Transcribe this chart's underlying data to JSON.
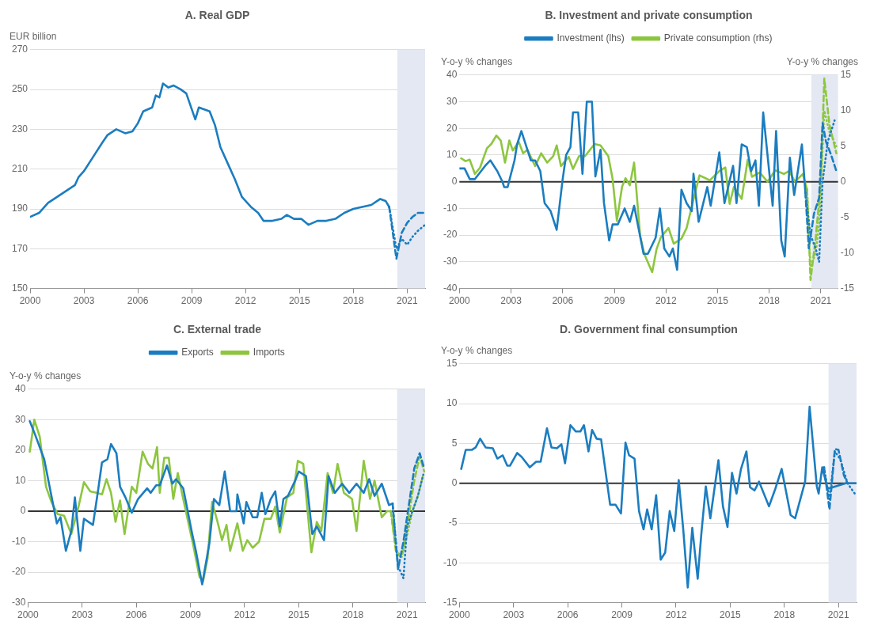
{
  "chart_data": [
    {
      "type": "line",
      "title": "A. Real GDP",
      "ylabel": "EUR billion",
      "marker": "none",
      "grid": "y",
      "xlim": [
        2000,
        2022
      ],
      "xticks": [
        2000,
        2003,
        2006,
        2009,
        2012,
        2015,
        2018,
        2021
      ],
      "ylim": [
        150,
        270
      ],
      "yticks": [
        150,
        170,
        190,
        210,
        230,
        250,
        270
      ],
      "bands": [
        {
          "axis": "x",
          "from": 2020.45,
          "to": 2022,
          "color": "#e4e8f2"
        }
      ],
      "series": [
        {
          "color": "#1b7dc0",
          "line_style": "solid",
          "x": [
            2000,
            2000.5,
            2001,
            2001.5,
            2002,
            2002.5,
            2002.7,
            2003,
            2003.5,
            2004,
            2004.3,
            2004.8,
            2005.3,
            2005.7,
            2006,
            2006.3,
            2006.8,
            2007,
            2007.2,
            2007.4,
            2007.7,
            2008,
            2008.4,
            2008.7,
            2009.2,
            2009.4,
            2009.7,
            2010,
            2010.3,
            2010.6,
            2011,
            2011.4,
            2011.8,
            2012.3,
            2012.7,
            2013,
            2013.5,
            2014,
            2014.3,
            2014.7,
            2015.1,
            2015.5,
            2016,
            2016.5,
            2017,
            2017.5,
            2018,
            2018.5,
            2019,
            2019.5,
            2019.8,
            2020
          ],
          "values": [
            186,
            188,
            193,
            196,
            199,
            202,
            206,
            209,
            216,
            223,
            227,
            230,
            228,
            229,
            233,
            239,
            241,
            247,
            246,
            253,
            251,
            252,
            250,
            248,
            235,
            241,
            240,
            239,
            232,
            221,
            213,
            205,
            196,
            191,
            188,
            184,
            184,
            185,
            187,
            185,
            185,
            182,
            184,
            184,
            185,
            188,
            190,
            191,
            192,
            195,
            194,
            191
          ]
        },
        {
          "color": "#1b7dc0",
          "line_style": "dashed",
          "x": [
            2020,
            2020.4,
            2020.7,
            2021,
            2021.3,
            2021.6,
            2022
          ],
          "values": [
            191,
            165,
            178,
            183,
            186,
            188,
            188
          ]
        },
        {
          "color": "#1b7dc0",
          "line_style": "dotted",
          "x": [
            2020,
            2020.4,
            2020.7,
            2021,
            2021.3,
            2021.6,
            2022
          ],
          "values": [
            191,
            170,
            175,
            172,
            176,
            179,
            182
          ]
        }
      ]
    },
    {
      "type": "line",
      "title": "B. Investment and private consumption",
      "ylabel": "Y-o-y % changes",
      "y2label": "Y-o-y % changes",
      "marker": "none",
      "grid": "y",
      "legend": "top",
      "xlim": [
        2000,
        2022
      ],
      "xticks": [
        2000,
        2003,
        2006,
        2009,
        2012,
        2015,
        2018,
        2021
      ],
      "ylim": [
        -40,
        40
      ],
      "yticks": [
        -40,
        -30,
        -20,
        -10,
        0,
        10,
        20,
        30,
        40
      ],
      "y2lim": [
        -15,
        15
      ],
      "y2ticks": [
        -15,
        -10,
        -5,
        0,
        5,
        10,
        15
      ],
      "bands": [
        {
          "axis": "x",
          "from": 2020.45,
          "to": 2022,
          "color": "#e4e8f2"
        }
      ],
      "ref_lines": [
        {
          "axis": "y",
          "value": 0,
          "color": "#333333"
        }
      ],
      "series": [
        {
          "name": "Investment (lhs)",
          "color": "#1b7dc0",
          "line_style": "solid",
          "x": [
            2000,
            2000.3,
            2000.6,
            2000.9,
            2001.5,
            2001.8,
            2002.2,
            2002.5,
            2002.6,
            2002.8,
            2003.2,
            2003.35,
            2003.6,
            2003.9,
            2004.15,
            2004.4,
            2004.7,
            2004.95,
            2005.3,
            2005.65,
            2006,
            2006.2,
            2006.45,
            2006.6,
            2006.9,
            2007.15,
            2007.4,
            2007.7,
            2007.9,
            2008.2,
            2008.4,
            2008.7,
            2008.9,
            2009.2,
            2009.6,
            2009.9,
            2010.15,
            2010.7,
            2010.95,
            2011.4,
            2011.65,
            2011.9,
            2012.2,
            2012.4,
            2012.65,
            2012.9,
            2013.2,
            2013.5,
            2013.6,
            2013.9,
            2014.4,
            2014.6,
            2015.1,
            2015.4,
            2015.9,
            2016.1,
            2016.4,
            2016.7,
            2016.95,
            2017.2,
            2017.4,
            2017.65,
            2018.2,
            2018.4,
            2018.7,
            2018.9,
            2019.2,
            2019.45,
            2019.9,
            2020.1
          ],
          "values": [
            5,
            5,
            1,
            1,
            6,
            8,
            4,
            0,
            -2,
            -2,
            8,
            14,
            19,
            13,
            8,
            8,
            4,
            -8,
            -11,
            -18,
            1,
            10,
            13,
            26,
            26,
            3,
            30,
            30,
            2,
            12,
            -8,
            -22,
            -16,
            -16,
            -10,
            -15,
            -9,
            -27,
            -27,
            -21,
            -10,
            -25,
            -28,
            -25,
            -33,
            -3,
            -8,
            -11,
            3,
            -15,
            -2,
            -9,
            11,
            -8,
            6,
            -8,
            14,
            13,
            4,
            8,
            -9,
            26,
            -9,
            19,
            -22,
            -28,
            9,
            -5,
            14,
            -4
          ]
        },
        {
          "name": "Private consumption (rhs)",
          "axis": "y2",
          "color": "#8dc63f",
          "line_style": "solid",
          "x": [
            2000.1,
            2000.35,
            2000.6,
            2000.9,
            2001.2,
            2001.6,
            2001.85,
            2002.15,
            2002.4,
            2002.65,
            2002.9,
            2003.1,
            2003.45,
            2003.7,
            2003.95,
            2004.4,
            2004.75,
            2005.1,
            2005.45,
            2005.65,
            2005.9,
            2006.35,
            2006.6,
            2006.95,
            2007.3,
            2007.85,
            2008.2,
            2008.65,
            2008.9,
            2009.15,
            2009.45,
            2009.65,
            2009.9,
            2010.15,
            2010.5,
            2010.75,
            2011.2,
            2011.45,
            2011.7,
            2012.15,
            2012.45,
            2012.9,
            2013.2,
            2013.6,
            2013.95,
            2014.3,
            2014.55,
            2015.1,
            2015.45,
            2015.7,
            2015.95,
            2016.4,
            2016.75,
            2017,
            2017.45,
            2017.9,
            2018.35,
            2018.85,
            2019.15,
            2019.5,
            2019.95,
            2020.2
          ],
          "values": [
            3.3,
            2.9,
            3.1,
            1.1,
            2,
            4.7,
            5.3,
            6.5,
            5.8,
            2.7,
            5.8,
            4.4,
            5.6,
            4,
            4.5,
            2.2,
            4,
            2.7,
            3.6,
            5.1,
            2.2,
            3.5,
            1.8,
            3.6,
            3.6,
            5.3,
            5.1,
            3.6,
            0.4,
            -5.5,
            -0.7,
            0.5,
            -0.5,
            2.7,
            -7.6,
            -10.2,
            -12.7,
            -9.5,
            -7.8,
            -6.5,
            -8.7,
            -8,
            -6.5,
            -2.5,
            0.9,
            0.5,
            0.2,
            1.5,
            2,
            -3.1,
            -0.7,
            -2.4,
            3.1,
            0.7,
            1.3,
            0,
            1.6,
            1.1,
            1.5,
            0,
            1.1,
            -1.1
          ]
        },
        {
          "color": "#1b7dc0",
          "line_style": "dashed",
          "x": [
            2020.1,
            2020.3,
            2020.6,
            2020.9,
            2021.1,
            2021.3,
            2021.6,
            2021.9
          ],
          "values": [
            -4,
            -25,
            -12,
            -6,
            22,
            15,
            10,
            4
          ]
        },
        {
          "color": "#1b7dc0",
          "line_style": "dotted",
          "x": [
            2020.1,
            2020.4,
            2020.7,
            2020.9,
            2021.1,
            2021.4,
            2021.8
          ],
          "values": [
            -4,
            -20,
            -25,
            -30,
            0,
            15,
            23
          ]
        },
        {
          "axis": "y2",
          "color": "#8dc63f",
          "line_style": "dashed",
          "x": [
            2020.2,
            2020.4,
            2020.7,
            2021,
            2021.2,
            2021.5,
            2021.9
          ],
          "values": [
            -1.1,
            -13.8,
            -8,
            0,
            14.5,
            8,
            4
          ]
        },
        {
          "axis": "y2",
          "color": "#8dc63f",
          "line_style": "dotted",
          "x": [
            2020.2,
            2020.4,
            2020.7,
            2020.9,
            2021.2,
            2021.5,
            2021.9
          ],
          "values": [
            -1.1,
            -12,
            -10,
            -6,
            10,
            7,
            5
          ]
        }
      ]
    },
    {
      "type": "line",
      "title": "C. External trade",
      "ylabel": "Y-o-y % changes",
      "marker": "none",
      "grid": "y",
      "legend": "top",
      "xlim": [
        2000,
        2022
      ],
      "xticks": [
        2000,
        2003,
        2006,
        2009,
        2012,
        2015,
        2018,
        2021
      ],
      "ylim": [
        -30,
        40
      ],
      "yticks": [
        -30,
        -20,
        -10,
        0,
        10,
        20,
        30,
        40
      ],
      "bands": [
        {
          "axis": "x",
          "from": 2020.45,
          "to": 2022,
          "color": "#e4e8f2"
        }
      ],
      "ref_lines": [
        {
          "axis": "y",
          "value": 0,
          "color": "#333333"
        }
      ],
      "series": [
        {
          "name": "Exports",
          "color": "#1b7dc0",
          "line_style": "solid",
          "x": [
            2000.1,
            2000.4,
            2000.9,
            2001.2,
            2001.6,
            2001.8,
            2002.1,
            2002.4,
            2002.6,
            2002.9,
            2003.1,
            2003.6,
            2003.9,
            2004.1,
            2004.4,
            2004.6,
            2004.9,
            2005.1,
            2005.4,
            2005.75,
            2006.1,
            2006.6,
            2006.8,
            2007.1,
            2007.3,
            2007.7,
            2008,
            2008.2,
            2008.6,
            2009.1,
            2009.3,
            2009.65,
            2010.05,
            2010.3,
            2010.6,
            2010.9,
            2011.2,
            2011.55,
            2011.6,
            2011.95,
            2012.1,
            2012.45,
            2012.7,
            2012.95,
            2013.15,
            2013.45,
            2013.7,
            2013.95,
            2014.15,
            2014.4,
            2014.8,
            2015,
            2015.4,
            2015.75,
            2016,
            2016.4,
            2016.65,
            2017,
            2017.4,
            2017.8,
            2018.2,
            2018.6,
            2018.9,
            2019.2,
            2019.6,
            2020,
            2020.2
          ],
          "values": [
            29.5,
            25,
            17,
            8,
            -4,
            -2,
            -13,
            -6.5,
            4.5,
            -13,
            -2.5,
            -4.5,
            7.5,
            16,
            17,
            22,
            19,
            8,
            4.5,
            -0.5,
            4,
            7.5,
            6,
            8.5,
            8.5,
            15,
            9,
            10.5,
            7.5,
            -7.5,
            -13,
            -24,
            -10.5,
            4,
            2,
            13,
            0,
            0,
            5.5,
            -4,
            3,
            -2,
            -2,
            6,
            -1,
            4,
            6.5,
            -5,
            4,
            5,
            10,
            13,
            11.5,
            -7.5,
            -5,
            -9.5,
            11.5,
            6,
            9,
            6,
            9,
            6,
            10.5,
            5,
            9,
            2,
            2.5
          ]
        },
        {
          "name": "Imports",
          "color": "#8dc63f",
          "line_style": "solid",
          "x": [
            2000.1,
            2000.35,
            2000.65,
            2001,
            2001.3,
            2001.65,
            2002,
            2002.4,
            2002.8,
            2003.1,
            2003.45,
            2003.8,
            2004.1,
            2004.35,
            2004.6,
            2004.85,
            2005.1,
            2005.35,
            2005.75,
            2006,
            2006.35,
            2006.65,
            2006.9,
            2007.15,
            2007.3,
            2007.55,
            2007.8,
            2008.05,
            2008.3,
            2008.6,
            2009.15,
            2009.5,
            2009.7,
            2009.95,
            2010.2,
            2010.5,
            2010.75,
            2011,
            2011.2,
            2011.6,
            2011.9,
            2012.15,
            2012.45,
            2012.8,
            2013.1,
            2013.45,
            2013.7,
            2013.95,
            2014.35,
            2014.7,
            2014.95,
            2015.25,
            2015.7,
            2016,
            2016.25,
            2016.6,
            2016.9,
            2017.15,
            2017.5,
            2017.95,
            2018.2,
            2018.6,
            2018.95,
            2019.2,
            2019.6,
            2019.9,
            2020.1
          ],
          "values": [
            19.5,
            30,
            24.5,
            8,
            3,
            -1,
            -1.5,
            -7.5,
            1.5,
            9.5,
            6.5,
            6,
            5.5,
            10.5,
            6,
            -3.5,
            3.5,
            -7.5,
            8,
            6,
            19.5,
            15.5,
            14,
            21,
            6,
            17.5,
            17.5,
            4,
            12.5,
            4,
            -11,
            -21.5,
            -23,
            -15.5,
            3,
            -3.5,
            -9.5,
            -4.5,
            -13,
            -4,
            -13,
            -9.5,
            -12,
            -10,
            -2.5,
            -2.5,
            1.5,
            -7,
            4.5,
            6,
            16.5,
            15.5,
            -13.5,
            -3.5,
            -6.5,
            12.5,
            6,
            15.5,
            6,
            4,
            -6.5,
            16.5,
            4,
            10,
            -2,
            0,
            0
          ]
        },
        {
          "color": "#1b7dc0",
          "line_style": "dashed",
          "x": [
            2020.2,
            2020.5,
            2020.8,
            2021.1,
            2021.4,
            2021.7,
            2021.95
          ],
          "values": [
            2.5,
            -19,
            -10,
            2,
            14,
            19,
            14
          ]
        },
        {
          "color": "#1b7dc0",
          "line_style": "dotted",
          "x": [
            2020.2,
            2020.5,
            2020.8,
            2021,
            2021.3,
            2021.6,
            2021.9
          ],
          "values": [
            2.5,
            -18,
            -22,
            -5,
            0,
            5,
            12
          ]
        },
        {
          "color": "#8dc63f",
          "line_style": "dashed",
          "x": [
            2020.1,
            2020.4,
            2020.7,
            2021,
            2021.4,
            2021.7,
            2021.95
          ],
          "values": [
            0,
            -14,
            -15,
            -5,
            10,
            18,
            13
          ]
        },
        {
          "color": "#8dc63f",
          "line_style": "dotted",
          "x": [
            2020.1,
            2020.4,
            2020.7,
            2021,
            2021.3,
            2021.6,
            2021.9
          ],
          "values": [
            0,
            -13,
            -15,
            -8,
            0,
            5,
            12
          ]
        }
      ]
    },
    {
      "type": "line",
      "title": "D. Government final consumption",
      "ylabel": "Y-o-y % changes",
      "marker": "none",
      "grid": "y",
      "xlim": [
        2000,
        2022
      ],
      "xticks": [
        2000,
        2003,
        2006,
        2009,
        2012,
        2015,
        2018,
        2021
      ],
      "ylim": [
        -15,
        15
      ],
      "yticks": [
        -15,
        -10,
        -5,
        0,
        5,
        10,
        15
      ],
      "bands": [
        {
          "axis": "x",
          "from": 2020.45,
          "to": 2022,
          "color": "#e4e8f2"
        }
      ],
      "ref_lines": [
        {
          "axis": "y",
          "value": 0,
          "color": "#333333"
        }
      ],
      "series": [
        {
          "color": "#1b7dc0",
          "line_style": "solid",
          "x": [
            2000.1,
            2000.35,
            2000.7,
            2000.9,
            2001.15,
            2001.45,
            2001.85,
            2002.1,
            2002.4,
            2002.65,
            2002.8,
            2003.2,
            2003.45,
            2003.9,
            2004.25,
            2004.5,
            2004.85,
            2005.1,
            2005.4,
            2005.65,
            2005.85,
            2006.15,
            2006.45,
            2006.7,
            2006.9,
            2007.15,
            2007.35,
            2007.6,
            2007.85,
            2008.35,
            2008.65,
            2008.95,
            2009.2,
            2009.4,
            2009.7,
            2009.95,
            2010.2,
            2010.4,
            2010.65,
            2010.9,
            2011.15,
            2011.4,
            2011.65,
            2011.9,
            2012.15,
            2012.4,
            2012.65,
            2012.9,
            2013.2,
            2013.4,
            2013.65,
            2013.9,
            2014.35,
            2014.6,
            2014.85,
            2015.1,
            2015.35,
            2015.6,
            2015.9,
            2016.1,
            2016.35,
            2016.6,
            2017.15,
            2017.5,
            2017.85,
            2018.35,
            2018.6,
            2019.15,
            2019.4,
            2019.8,
            2019.9,
            2020.1,
            2020.4,
            2021.4,
            2022
          ],
          "values": [
            1.8,
            4.2,
            4.2,
            4.5,
            5.6,
            4.5,
            4.4,
            3.1,
            3.5,
            2.2,
            2.2,
            3.8,
            3.3,
            2,
            2.7,
            2.7,
            6.9,
            4.5,
            4.4,
            4.9,
            2.5,
            7.3,
            6.5,
            6.5,
            7.3,
            4,
            6.7,
            5.6,
            5.5,
            -2.7,
            -2.7,
            -3.8,
            5.1,
            3.5,
            3.1,
            -3.5,
            -5.8,
            -3.3,
            -5.8,
            -1.5,
            -9.6,
            -8.7,
            -3.5,
            -6,
            0.4,
            -5.8,
            -13.1,
            -5.6,
            -12,
            -6.4,
            -0.4,
            -4.4,
            2.9,
            -2.9,
            -5.5,
            1.3,
            -1.3,
            1.8,
            4,
            -0.5,
            -0.9,
            0.2,
            -2.9,
            -0.7,
            1.8,
            -4,
            -4.4,
            0.2,
            9.6,
            -0.4,
            -1.3,
            2,
            -0.7,
            0,
            0
          ]
        },
        {
          "color": "#1b7dc0",
          "line_style": "dashed",
          "x": [
            2020.2,
            2020.5,
            2020.8,
            2021,
            2021.3,
            2021.5
          ],
          "values": [
            2,
            -3.3,
            4.3,
            4.2,
            1,
            0
          ]
        },
        {
          "color": "#1b7dc0",
          "line_style": "dotted",
          "x": [
            2020.2,
            2020.5,
            2020.8,
            2021.1,
            2021.5,
            2021.9
          ],
          "values": [
            2,
            -2,
            4,
            3,
            0,
            -1.3
          ]
        }
      ]
    }
  ]
}
